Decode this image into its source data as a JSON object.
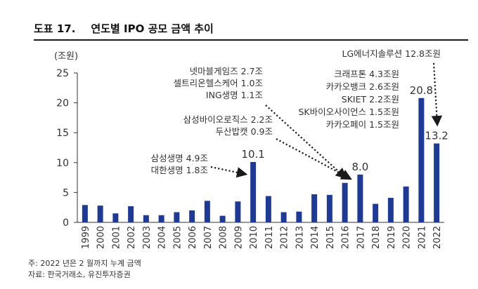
{
  "figure": {
    "number": "도표 17.",
    "title": "연도별 IPO 공모 금액 추이"
  },
  "notes": {
    "note": "주: 2022 년은 2 월까지 누계 금액",
    "source": "자료: 한국거래소, 유진투자증권"
  },
  "colors": {
    "bar": "#1f3a93",
    "grid": "#cccccc",
    "axis": "#333333",
    "text": "#333333",
    "callout": "#1a1a1a"
  },
  "chart_data": {
    "type": "bar",
    "title": "연도별 IPO 공모 금액 추이",
    "ylabel": "(조원)",
    "xlabel": "",
    "ylim": [
      0,
      25
    ],
    "yticks": [
      0,
      5,
      10,
      15,
      20,
      25
    ],
    "grid": false,
    "categories": [
      "1999",
      "2000",
      "2001",
      "2002",
      "2003",
      "2004",
      "2005",
      "2006",
      "2007",
      "2008",
      "2009",
      "2010",
      "2011",
      "2012",
      "2013",
      "2014",
      "2015",
      "2016",
      "2017",
      "2018",
      "2019",
      "2020",
      "2021",
      "2022"
    ],
    "values": [
      2.9,
      2.8,
      1.5,
      2.7,
      1.2,
      1.2,
      1.7,
      2.0,
      3.6,
      1.1,
      3.5,
      10.1,
      4.4,
      1.7,
      1.8,
      4.7,
      4.6,
      6.6,
      8.0,
      3.1,
      4.1,
      6.0,
      20.8,
      13.2
    ],
    "data_labels": [
      {
        "category": "2010",
        "text": "10.1"
      },
      {
        "category": "2017",
        "text": "8.0"
      },
      {
        "category": "2021",
        "text": "20.8"
      },
      {
        "category": "2022",
        "text": "13.2"
      }
    ],
    "annotations": [
      {
        "id": "a2010",
        "target": "2010",
        "align": "right",
        "lines": [
          "삼성생명 4.9조",
          "대한생명 1.8조"
        ]
      },
      {
        "id": "a2016a",
        "target": "2016",
        "align": "right",
        "lines": [
          "넷마블게임즈 2.7조",
          "셀트리온헬스케어 1.0조",
          "ING생명 1.1조"
        ]
      },
      {
        "id": "a2016b",
        "target": "2016",
        "align": "right",
        "lines": [
          "삼성바이오로직스 2.2조",
          "두산밥캣 0.9조"
        ]
      },
      {
        "id": "a2021",
        "target": "2021",
        "align": "right",
        "lines": [
          "크래프톤 4.3조원",
          "카카오뱅크 2.6조원",
          "SKIET 2.2조원",
          "SK바이오사이언스 1.5조원",
          "카카오페이 1.5조원"
        ]
      },
      {
        "id": "a2022",
        "target": "2022",
        "align": "right",
        "lines": [
          "LG에너지솔루션 12.8조원"
        ]
      }
    ]
  }
}
